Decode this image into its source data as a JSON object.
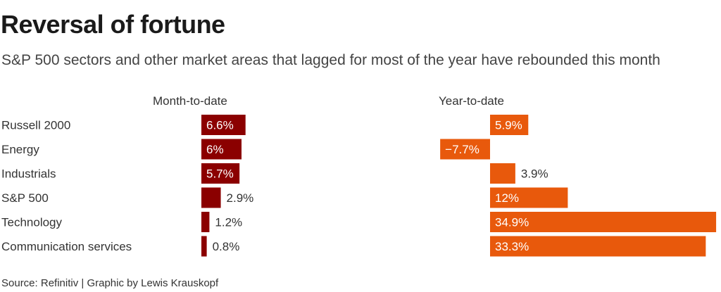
{
  "title": "Reversal of fortune",
  "subtitle": "S&P 500 sectors and other market areas that lagged for most of the year have rebounded this month",
  "source": "Source: Refinitiv | Graphic by Lewis Krauskopf",
  "chart_data": {
    "type": "bar",
    "orientation": "horizontal",
    "categories": [
      "Russell 2000",
      "Energy",
      "Industrials",
      "S&P 500",
      "Technology",
      "Communication services"
    ],
    "series": [
      {
        "name": "Month-to-date",
        "values": [
          6.6,
          6,
          5.7,
          2.9,
          1.2,
          0.8
        ],
        "labels": [
          "6.6%",
          "6%",
          "5.7%",
          "2.9%",
          "1.2%",
          "0.8%"
        ],
        "color": "#8b0000"
      },
      {
        "name": "Year-to-date",
        "values": [
          5.9,
          -7.7,
          3.9,
          12,
          34.9,
          33.3
        ],
        "labels": [
          "5.9%",
          "−7.7%",
          "3.9%",
          "12%",
          "34.9%",
          "33.3%"
        ],
        "color": "#e8590c"
      }
    ]
  }
}
